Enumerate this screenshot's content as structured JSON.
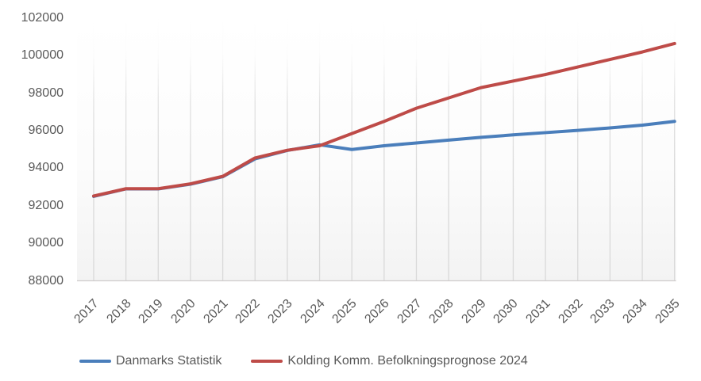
{
  "chart_data": {
    "type": "line",
    "title": "",
    "xlabel": "",
    "ylabel": "",
    "x": [
      2017,
      2018,
      2019,
      2020,
      2021,
      2022,
      2023,
      2024,
      2025,
      2026,
      2027,
      2028,
      2029,
      2030,
      2031,
      2032,
      2033,
      2034,
      2035
    ],
    "yticks": [
      88000,
      90000,
      92000,
      94000,
      96000,
      98000,
      100000,
      102000
    ],
    "ylim": [
      88000,
      102000
    ],
    "grid": "vertical-only",
    "legend_position": "bottom",
    "series": [
      {
        "name": "Danmarks Statistik",
        "color": "#4A7EBB",
        "values": [
          92500,
          92900,
          92900,
          93150,
          93550,
          94500,
          94950,
          95250,
          95000,
          95200,
          95350,
          95500,
          95650,
          95780,
          95900,
          96020,
          96150,
          96300,
          96500
        ]
      },
      {
        "name": "Kolding Komm. Befolkningsprognose 2024",
        "color": "#BE4B48",
        "values": [
          92520,
          92910,
          92910,
          93170,
          93570,
          94550,
          94960,
          95200,
          95850,
          96500,
          97200,
          97750,
          98300,
          98650,
          99000,
          99400,
          99800,
          100200,
          100650
        ]
      }
    ],
    "colors": {
      "text": "#595959",
      "gridline": "#d9d9d9",
      "axis_line": "#cfcccc",
      "plot_fill_bottom": "#f3f3f3",
      "background": "#ffffff"
    }
  }
}
